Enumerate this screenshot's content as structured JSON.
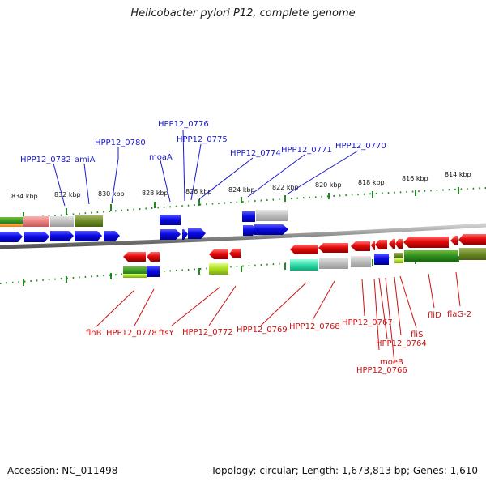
{
  "title": "Helicobacter pylori P12, complete genome",
  "footer": {
    "accession": "Accession: NC_011498",
    "topology": "Topology: circular; Length: 1,673,813 bp; Genes: 1,610"
  },
  "ruler": [
    "834 kbp",
    "832 kbp",
    "830 kbp",
    "828 kbp",
    "826 kbp",
    "824 kbp",
    "822 kbp",
    "820 kbp",
    "818 kbp",
    "816 kbp",
    "814 kbp"
  ],
  "top_labels": [
    "HPP12_0782",
    "amiA",
    "HPP12_0780",
    "moaA",
    "HPP12_0776",
    "HPP12_0775",
    "HPP12_0774",
    "HPP12_0771",
    "HPP12_0770"
  ],
  "bottom_labels": [
    "flhB",
    "HPP12_0778",
    "ftsY",
    "HPP12_0772",
    "HPP12_0769",
    "HPP12_0768",
    "HPP12_0767",
    "moeB",
    "HPP12_0766",
    "HPP12_0764",
    "fliS",
    "fliD",
    "flaG-2"
  ],
  "colors": {
    "forward_gene": "#0a0ae6",
    "reverse_gene": "#e60a0a",
    "backbone": "#8a8a8a",
    "tick": "#1f8a1f",
    "label_top": "#1a1acc",
    "label_bottom": "#cc1111"
  }
}
